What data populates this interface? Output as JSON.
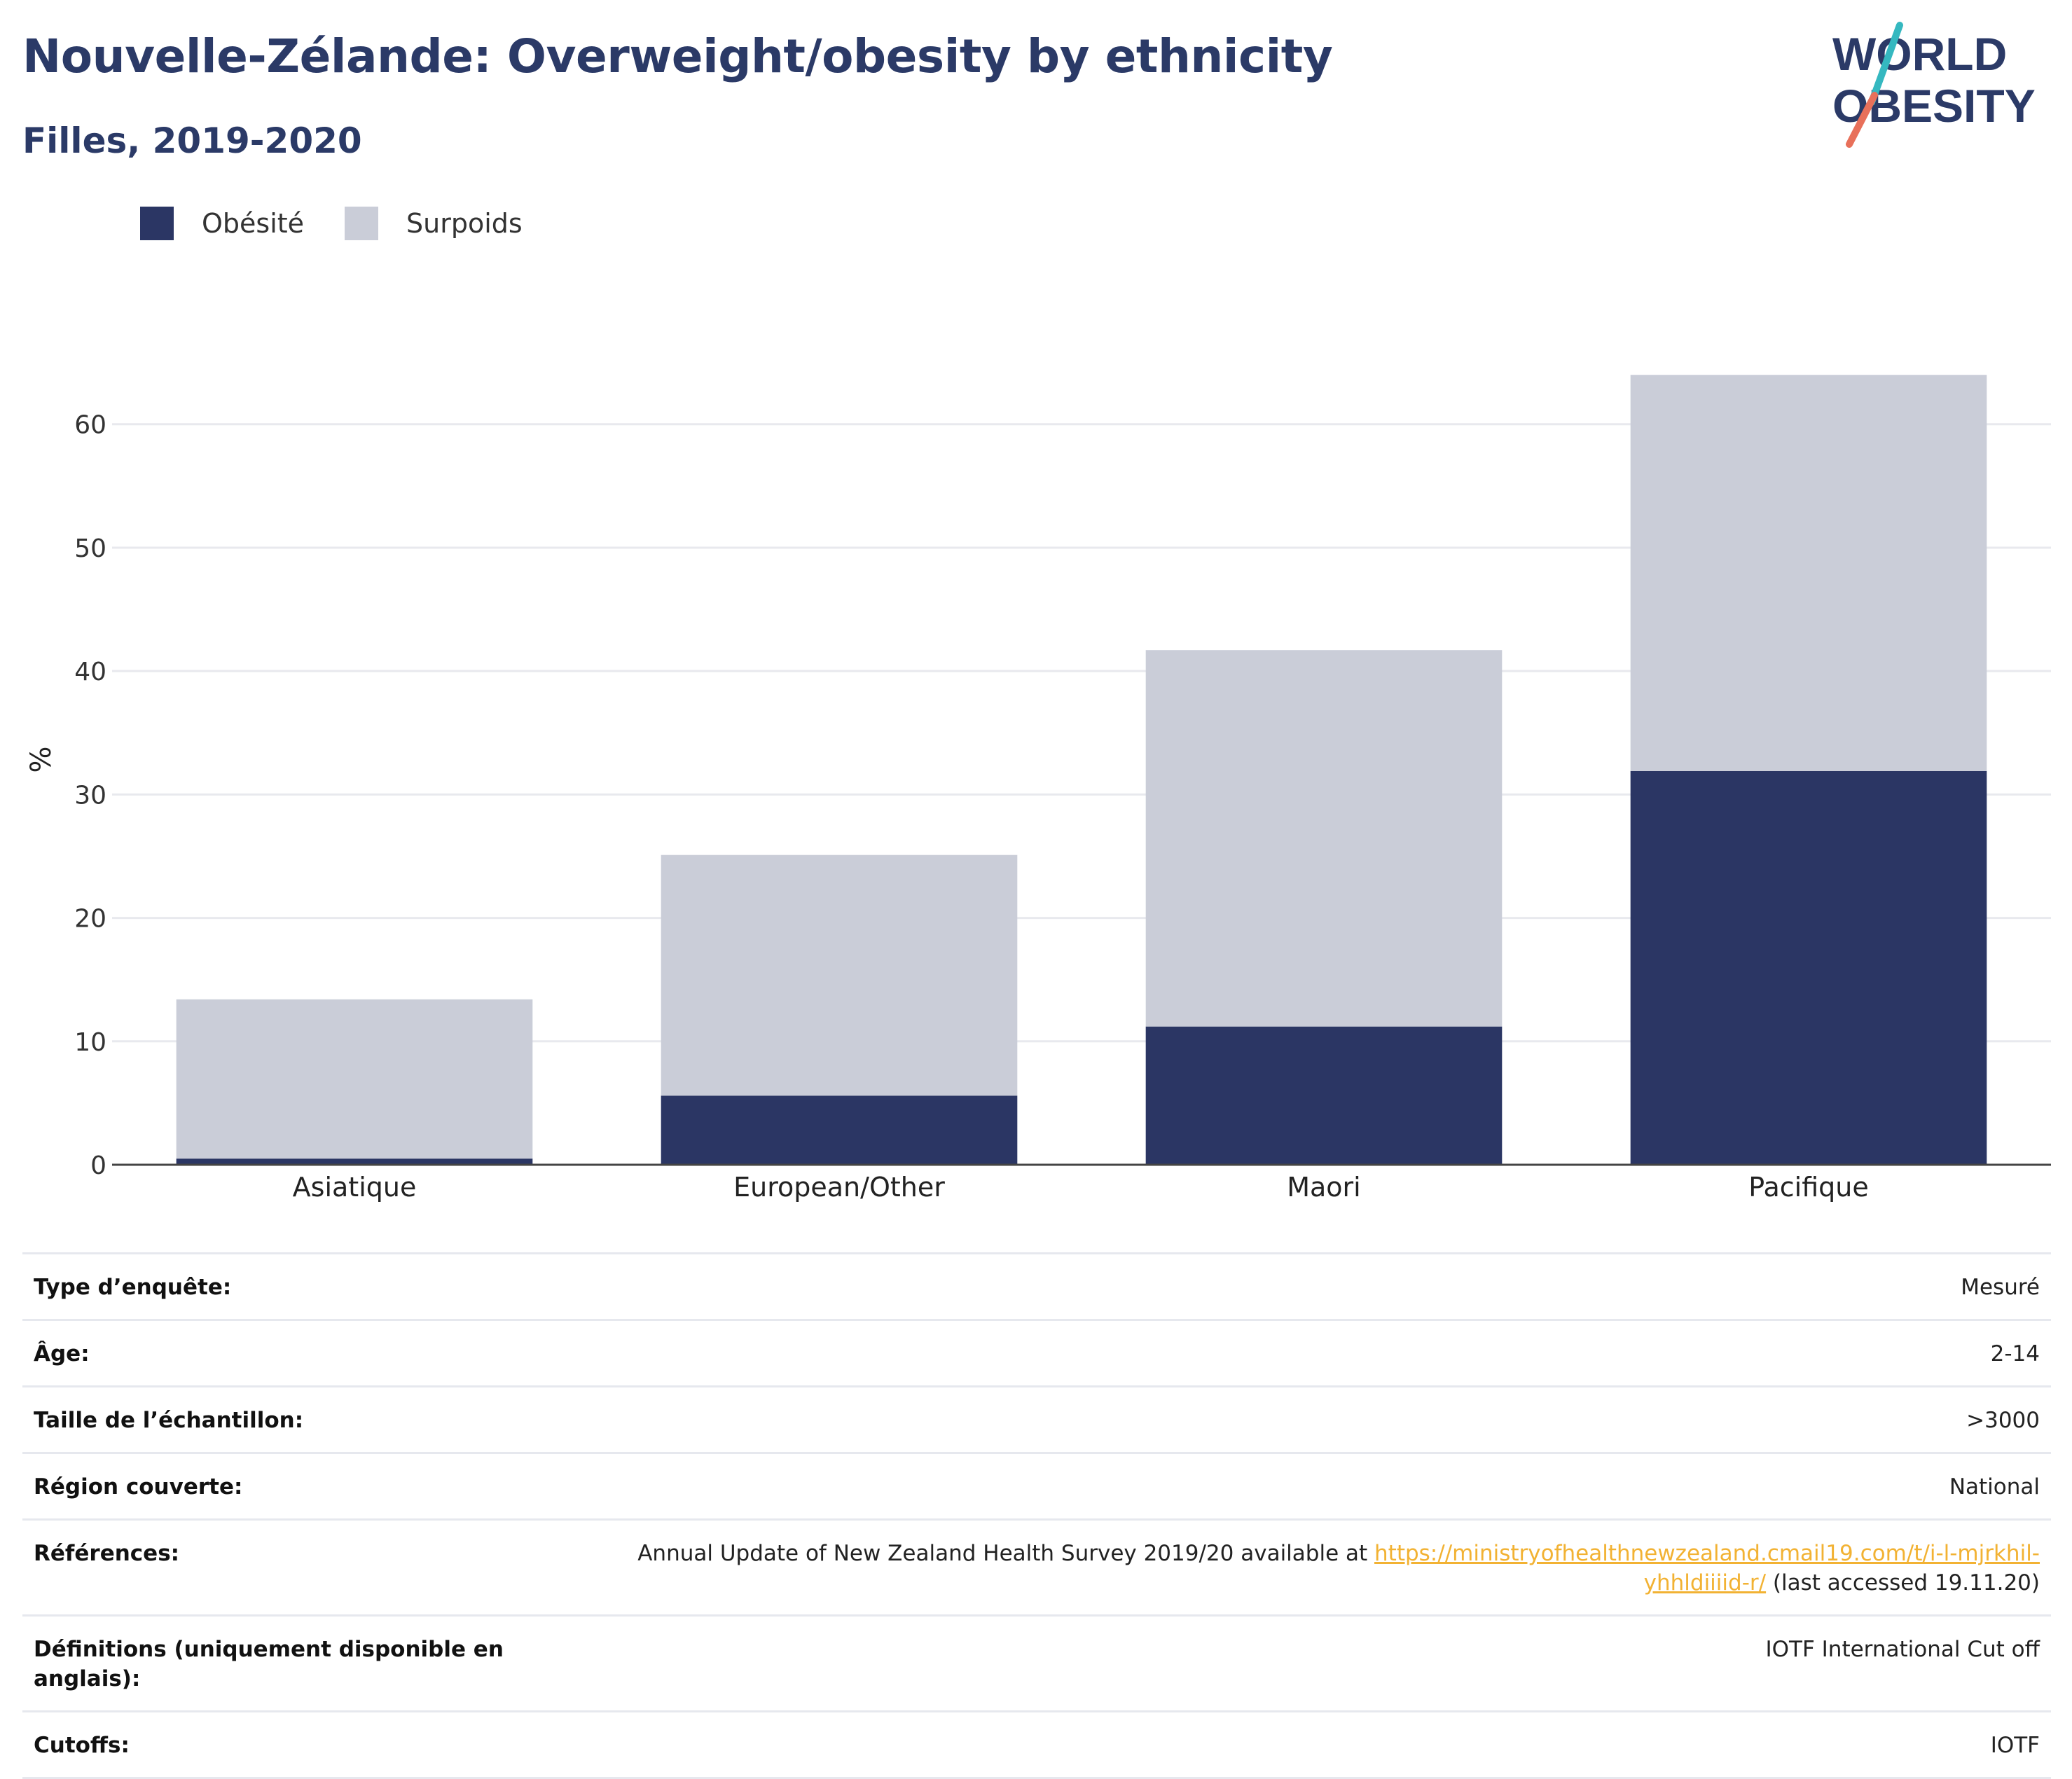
{
  "header": {
    "title": "Nouvelle-Zélande: Overweight/obesity by ethnicity",
    "subtitle": "Filles, 2019-2020"
  },
  "logo": {
    "line1": "WORLD",
    "line2": "OBESITY",
    "accent_colors": [
      "#35b8c0",
      "#e8705a"
    ]
  },
  "chart_data": {
    "type": "bar",
    "stacked": true,
    "categories": [
      "Asiatique",
      "European/Other",
      "Maori",
      "Pacifique"
    ],
    "series": [
      {
        "name": "Obésité",
        "color": "#2b3664",
        "values": [
          0.5,
          5.6,
          11.2,
          31.9
        ]
      },
      {
        "name": "Surpoids",
        "color": "#cacdd8",
        "values": [
          12.9,
          19.5,
          30.5,
          32.1
        ]
      }
    ],
    "ylabel": "%",
    "ylim": [
      0,
      66
    ],
    "yticks": [
      0,
      10,
      20,
      30,
      40,
      50,
      60
    ],
    "grid": true,
    "legend": "top-left"
  },
  "meta": {
    "rows": [
      {
        "label": "Type d’enquête:",
        "value": "Mesuré"
      },
      {
        "label": "Âge:",
        "value": "2-14"
      },
      {
        "label": "Taille de l’échantillon:",
        "value": ">3000"
      },
      {
        "label": "Région couverte:",
        "value": "National"
      },
      {
        "label": "Références:",
        "value_before": "Annual Update of New Zealand Health Survey 2019/20 available at ",
        "link_line1": "https://ministryofhealthnewzealand.cmail19.com/t/i-l-mjrkhil-",
        "link_line2": "yhhldiiiid-r/",
        "value_after": " (last accessed 19.11.20)"
      },
      {
        "label": "Définitions (uniquement disponible en anglais):",
        "value": "IOTF International Cut off"
      },
      {
        "label": "Cutoffs:",
        "value": "IOTF"
      }
    ]
  }
}
